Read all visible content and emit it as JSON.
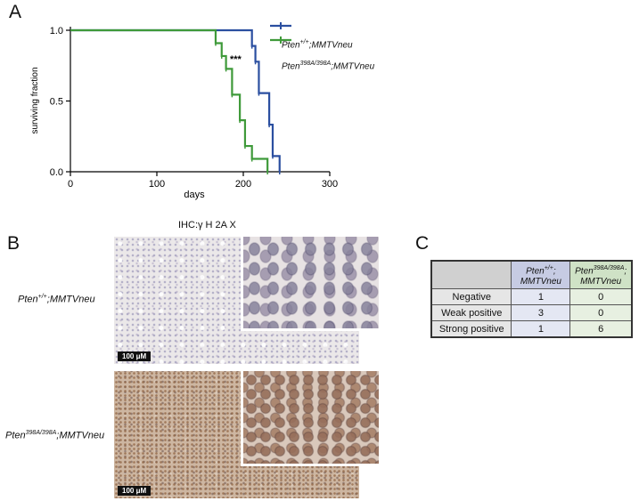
{
  "panels": {
    "a": "A",
    "b": "B",
    "c": "C"
  },
  "chart_data": {
    "type": "line",
    "subtype": "kaplan-meier",
    "xlabel": "days",
    "ylabel": "surviving fraction",
    "xlim": [
      0,
      300
    ],
    "ylim": [
      0,
      1.0
    ],
    "xticks": [
      0,
      100,
      200,
      300
    ],
    "yticks": [
      0.0,
      0.5,
      1.0
    ],
    "ytick_labels": [
      "0.0",
      "0.5",
      "1.0"
    ],
    "annotation": "***",
    "legend": [
      {
        "prefix": "Pten",
        "sup": "+/+",
        "suffix": ";MMTVneu",
        "color": "#2b4fa0"
      },
      {
        "prefix": "Pten",
        "sup": "398A/398A",
        "suffix": ";MMTVneu",
        "color": "#3f9a3a"
      }
    ],
    "series": [
      {
        "color": "#2b4fa0",
        "steps": [
          [
            0,
            1.0
          ],
          [
            210,
            0.889
          ],
          [
            214,
            0.778
          ],
          [
            218,
            0.556
          ],
          [
            230,
            0.333
          ],
          [
            234,
            0.111
          ],
          [
            242,
            0.0
          ]
        ]
      },
      {
        "color": "#3f9a3a",
        "steps": [
          [
            0,
            1.0
          ],
          [
            168,
            0.909
          ],
          [
            175,
            0.818
          ],
          [
            180,
            0.727
          ],
          [
            187,
            0.545
          ],
          [
            196,
            0.364
          ],
          [
            202,
            0.182
          ],
          [
            210,
            0.091
          ],
          [
            228,
            0.0
          ]
        ]
      }
    ]
  },
  "ihc": {
    "title": "IHC:γ H 2A X",
    "scale_label": "100 μM",
    "rows": [
      {
        "prefix": "Pten",
        "sup": "+/+",
        "suffix": ";MMTVneu"
      },
      {
        "prefix": "Pten",
        "sup": "398A/398A",
        "suffix": ";MMTVneu"
      }
    ]
  },
  "table": {
    "headers": [
      {
        "prefix": "Pten",
        "sup": "+/+",
        "suffix": ";",
        "line2": "MMTVneu"
      },
      {
        "prefix": "Pten",
        "sup": "398A/398A",
        "suffix": ";",
        "line2": "MMTVneu"
      }
    ],
    "rows": [
      {
        "label": "Negative",
        "v1": "1",
        "v2": "0"
      },
      {
        "label": "Weak positive",
        "v1": "3",
        "v2": "0"
      },
      {
        "label": "Strong positive",
        "v1": "1",
        "v2": "6"
      }
    ],
    "colors": {
      "corner": "#d0d0d0",
      "col1": "#c6cbe3",
      "col2": "#cfe2c6",
      "label": "#e6e6e6",
      "cell1": "#e4e7f3",
      "cell2": "#e7f0e1"
    }
  }
}
